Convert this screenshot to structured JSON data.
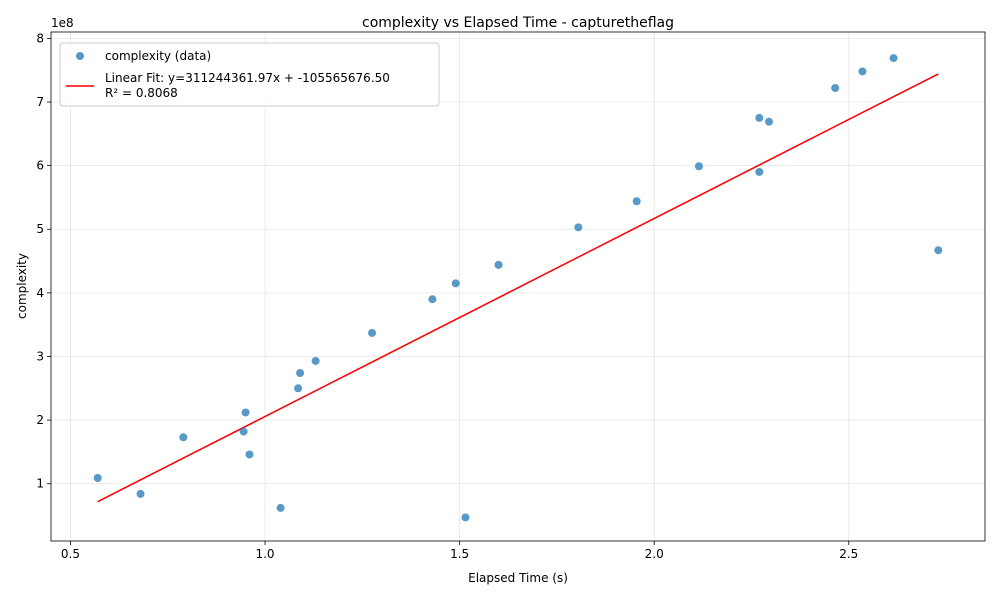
{
  "chart_data": {
    "type": "scatter",
    "title": "complexity vs Elapsed Time - capturetheflag",
    "xlabel": "Elapsed Time (s)",
    "ylabel": "complexity",
    "y_offset_label": "1e8",
    "xlim": [
      0.45,
      2.85
    ],
    "ylim": [
      0.1,
      8.1
    ],
    "x_ticks": [
      0.5,
      1.0,
      1.5,
      2.0,
      2.5
    ],
    "x_tick_labels": [
      "0.5",
      "1.0",
      "1.5",
      "2.0",
      "2.5"
    ],
    "y_ticks": [
      1,
      2,
      3,
      4,
      5,
      6,
      7,
      8
    ],
    "y_tick_labels": [
      "1",
      "2",
      "3",
      "4",
      "5",
      "6",
      "7",
      "8"
    ],
    "grid": true,
    "legend_position": "top-left",
    "series": [
      {
        "name": "complexity (data)",
        "color": "#1f77b4",
        "marker": "circle",
        "x": [
          0.57,
          0.68,
          0.79,
          0.945,
          0.95,
          0.96,
          1.04,
          1.085,
          1.09,
          1.13,
          1.275,
          1.43,
          1.49,
          1.515,
          1.6,
          1.805,
          1.955,
          2.115,
          2.27,
          2.27,
          2.295,
          2.465,
          2.535,
          2.615,
          2.73
        ],
        "y": [
          1.09,
          0.84,
          1.73,
          1.82,
          2.12,
          1.46,
          0.62,
          2.5,
          2.74,
          2.93,
          3.37,
          3.9,
          4.15,
          0.47,
          4.44,
          5.03,
          5.44,
          5.99,
          6.75,
          5.9,
          6.69,
          7.22,
          7.48,
          7.69,
          4.67
        ]
      },
      {
        "name": "Linear Fit: y=311244361.97x + -105565676.50",
        "name_line2": "R² = 0.8068",
        "color": "#ff0000",
        "type": "line",
        "slope": 3.1124436197,
        "intercept": -1.055656765,
        "x_range": [
          0.57,
          2.73
        ]
      }
    ]
  }
}
